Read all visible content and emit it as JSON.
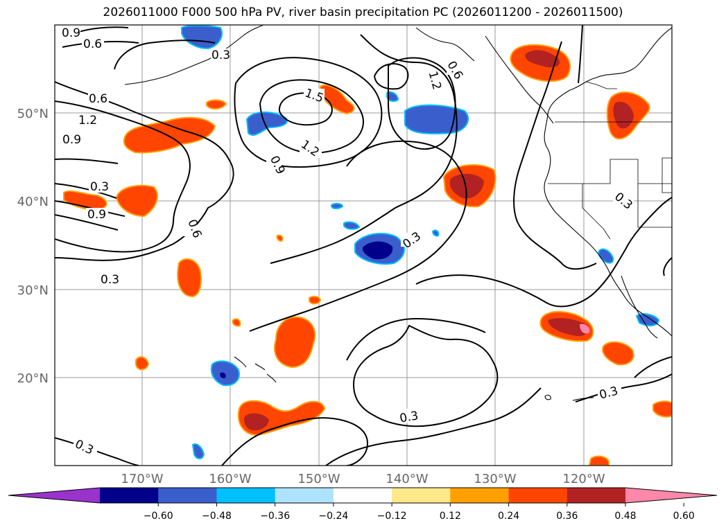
{
  "title": "2026011000 F000 500 hPa PV, river basin precipitation PC (2026011200 - 2026011500)",
  "lat_labels": [
    "50°N",
    "40°N",
    "30°N",
    "20°N"
  ],
  "lon_labels": [
    "170°W",
    "160°W",
    "150°W",
    "140°W",
    "130°W",
    "120°W"
  ],
  "contour_labels": [
    "0.9",
    "0.6",
    "0.3",
    "0.6",
    "1.2",
    "0.9",
    "0.3",
    "0.9",
    "0.6",
    "0.3",
    "1.5",
    "1.2",
    "0.9",
    "1.2",
    "0.6",
    "0.3",
    "0.3",
    "0.3",
    "0.3",
    "0.3"
  ],
  "colorbar": {
    "colors": [
      "#9933cc",
      "#00008b",
      "#3a5fcd",
      "#00bfff",
      "#aee3ff",
      "#ffffff",
      "#ffe88a",
      "#ffa000",
      "#ff4500",
      "#b22222",
      "#ff88aa"
    ],
    "tick_labels": [
      "−0.60",
      "−0.48",
      "−0.36",
      "−0.24",
      "−0.12",
      "0.12",
      "0.24",
      "0.36",
      "0.48",
      "0.60"
    ]
  }
}
